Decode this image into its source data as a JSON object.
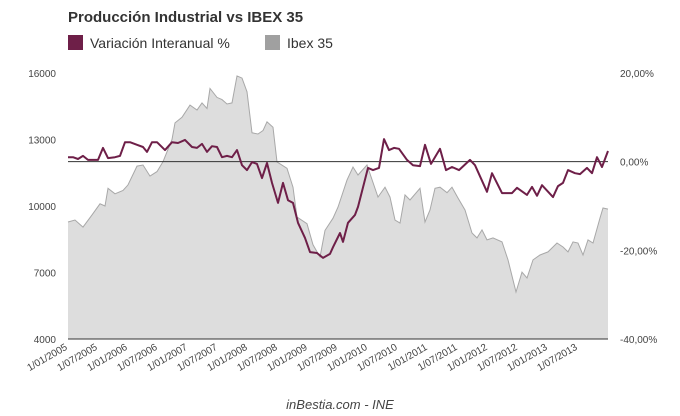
{
  "chart_data": {
    "type": "line",
    "title": "Producción Industrial vs IBEX 35",
    "source": "inBestia.com - INE",
    "x_unit": "months since 1/01/2005",
    "xlim": [
      0,
      108
    ],
    "x_tick_labels": [
      "1/01/2005",
      "1/07/2005",
      "1/01/2006",
      "1/07/2006",
      "1/01/2007",
      "1/07/2007",
      "1/01/2008",
      "1/07/2008",
      "1/01/2009",
      "1/07/2009",
      "1/01/2010",
      "1/07/2010",
      "1/01/2011",
      "1/07/2011",
      "1/01/2012",
      "1/07/2012",
      "1/01/2013",
      "1/07/2013"
    ],
    "y_left": {
      "ylim": [
        4000,
        16000
      ],
      "ticks": [
        "16000",
        "13000",
        "10000",
        "7000",
        "4000"
      ]
    },
    "y_right": {
      "ylim": [
        -40,
        20
      ],
      "ticks": [
        "20,00%",
        "0,00%",
        "-20,00%",
        "-40,00%"
      ],
      "reference_line": 0
    },
    "legend_position": "top-left",
    "colors": {
      "variacion": "#6e1f48",
      "ibex_fill": "#dddddd",
      "ibex_stroke": "#a8a8a8",
      "ibex_swatch": "#a0a0a0"
    },
    "series": [
      {
        "name": "Variación Interanual %",
        "type": "line",
        "axis": "right",
        "points": [
          [
            0,
            1.0
          ],
          [
            1,
            1.0
          ],
          [
            2,
            0.6
          ],
          [
            3,
            1.3
          ],
          [
            4,
            0.4
          ],
          [
            6,
            0.4
          ],
          [
            7,
            3.1
          ],
          [
            8,
            0.8
          ],
          [
            9.4,
            1.0
          ],
          [
            10.4,
            1.3
          ],
          [
            11.4,
            4.4
          ],
          [
            12.4,
            4.4
          ],
          [
            13.8,
            3.8
          ],
          [
            15,
            3.3
          ],
          [
            15.8,
            2.2
          ],
          [
            16.8,
            4.4
          ],
          [
            17.8,
            4.4
          ],
          [
            19.4,
            2.6
          ],
          [
            20.8,
            4.4
          ],
          [
            22,
            4.2
          ],
          [
            23.4,
            4.9
          ],
          [
            24.8,
            3.3
          ],
          [
            25.8,
            3.1
          ],
          [
            26.8,
            4.0
          ],
          [
            27.8,
            2.2
          ],
          [
            28.8,
            3.5
          ],
          [
            29.8,
            3.3
          ],
          [
            30.8,
            1.0
          ],
          [
            31.8,
            1.3
          ],
          [
            32.8,
            1.0
          ],
          [
            33.8,
            2.6
          ],
          [
            34.8,
            -0.8
          ],
          [
            35.8,
            -1.9
          ],
          [
            36.8,
            -0.1
          ],
          [
            37.8,
            -0.5
          ],
          [
            38.8,
            -3.7
          ],
          [
            39.8,
            -0.3
          ],
          [
            40.8,
            -4.8
          ],
          [
            42,
            -9.3
          ],
          [
            43,
            -4.8
          ],
          [
            44,
            -8.7
          ],
          [
            45,
            -9.3
          ],
          [
            46,
            -13.8
          ],
          [
            47.4,
            -17.2
          ],
          [
            48.4,
            -20.4
          ],
          [
            49.8,
            -20.6
          ],
          [
            51,
            -21.7
          ],
          [
            52.4,
            -20.8
          ],
          [
            53,
            -19.3
          ],
          [
            54.4,
            -16.1
          ],
          [
            55,
            -18.1
          ],
          [
            56,
            -13.8
          ],
          [
            57.4,
            -12.0
          ],
          [
            58,
            -10.2
          ],
          [
            60,
            -1.4
          ],
          [
            61,
            -1.9
          ],
          [
            62.2,
            -1.4
          ],
          [
            63.2,
            5.1
          ],
          [
            64.2,
            2.6
          ],
          [
            65.2,
            3.1
          ],
          [
            66.2,
            2.9
          ],
          [
            67.8,
            0.4
          ],
          [
            69,
            -0.8
          ],
          [
            70.4,
            -1.0
          ],
          [
            71.4,
            3.8
          ],
          [
            72.6,
            -0.5
          ],
          [
            74.4,
            2.9
          ],
          [
            75.6,
            -1.9
          ],
          [
            76.8,
            -1.2
          ],
          [
            78.2,
            -1.9
          ],
          [
            80.4,
            0.4
          ],
          [
            81.4,
            -0.8
          ],
          [
            83.8,
            -6.8
          ],
          [
            84.8,
            -2.6
          ],
          [
            86.8,
            -7.1
          ],
          [
            88.8,
            -7.1
          ],
          [
            89.8,
            -5.9
          ],
          [
            91.8,
            -7.5
          ],
          [
            92.8,
            -5.7
          ],
          [
            93.8,
            -7.7
          ],
          [
            94.8,
            -5.3
          ],
          [
            97,
            -8.0
          ],
          [
            98,
            -5.5
          ],
          [
            99,
            -4.8
          ],
          [
            100,
            -1.9
          ],
          [
            101.4,
            -2.6
          ],
          [
            102.4,
            -2.8
          ],
          [
            103.8,
            -1.4
          ],
          [
            104.8,
            -2.6
          ],
          [
            105.8,
            1.0
          ],
          [
            106.8,
            -1.2
          ],
          [
            108,
            2.4
          ]
        ]
      },
      {
        "name": "Ibex 35",
        "type": "area",
        "axis": "left",
        "points": [
          [
            0,
            9280
          ],
          [
            1.4,
            9370
          ],
          [
            3,
            9050
          ],
          [
            4.8,
            9600
          ],
          [
            6.4,
            10100
          ],
          [
            7.4,
            10000
          ],
          [
            8,
            10800
          ],
          [
            9.4,
            10550
          ],
          [
            11,
            10700
          ],
          [
            12,
            10950
          ],
          [
            13.8,
            11800
          ],
          [
            15,
            11850
          ],
          [
            16.4,
            11350
          ],
          [
            17.8,
            11550
          ],
          [
            19,
            12000
          ],
          [
            20.8,
            13000
          ],
          [
            21.4,
            13750
          ],
          [
            22.8,
            14000
          ],
          [
            24.4,
            14550
          ],
          [
            25.8,
            14330
          ],
          [
            26.8,
            14650
          ],
          [
            27.8,
            14400
          ],
          [
            28.4,
            15300
          ],
          [
            29.8,
            14900
          ],
          [
            30.8,
            14800
          ],
          [
            31.8,
            14600
          ],
          [
            32.8,
            14650
          ],
          [
            33.8,
            15870
          ],
          [
            34.8,
            15770
          ],
          [
            35.8,
            15150
          ],
          [
            36.8,
            13300
          ],
          [
            38,
            13250
          ],
          [
            39,
            13400
          ],
          [
            39.8,
            13800
          ],
          [
            41,
            13550
          ],
          [
            41.8,
            11990
          ],
          [
            43.8,
            11700
          ],
          [
            45,
            10850
          ],
          [
            45.8,
            9500
          ],
          [
            47.8,
            9200
          ],
          [
            49,
            8250
          ],
          [
            50.4,
            7700
          ],
          [
            51.4,
            8900
          ],
          [
            53,
            9450
          ],
          [
            54,
            9950
          ],
          [
            55.8,
            11170
          ],
          [
            57,
            11760
          ],
          [
            58,
            11400
          ],
          [
            59.8,
            11850
          ],
          [
            62,
            10400
          ],
          [
            63.4,
            10850
          ],
          [
            64.4,
            10400
          ],
          [
            65.4,
            9370
          ],
          [
            66.4,
            9230
          ],
          [
            67.4,
            10500
          ],
          [
            68.4,
            10270
          ],
          [
            70.4,
            10800
          ],
          [
            71.4,
            9280
          ],
          [
            72.4,
            9820
          ],
          [
            73.4,
            10800
          ],
          [
            74.4,
            10850
          ],
          [
            75.8,
            10600
          ],
          [
            76.8,
            10850
          ],
          [
            78,
            10360
          ],
          [
            79.4,
            9820
          ],
          [
            80.8,
            8780
          ],
          [
            81.8,
            8560
          ],
          [
            82.8,
            8920
          ],
          [
            83.8,
            8470
          ],
          [
            85,
            8560
          ],
          [
            86.8,
            8380
          ],
          [
            88,
            7570
          ],
          [
            89.6,
            6120
          ],
          [
            90.8,
            7020
          ],
          [
            91.8,
            6750
          ],
          [
            93,
            7570
          ],
          [
            94.4,
            7790
          ],
          [
            96,
            7930
          ],
          [
            97.8,
            8330
          ],
          [
            99,
            8150
          ],
          [
            100,
            7930
          ],
          [
            101,
            8380
          ],
          [
            102,
            8330
          ],
          [
            103,
            7790
          ],
          [
            104,
            8470
          ],
          [
            105,
            8330
          ],
          [
            106.4,
            9460
          ],
          [
            107,
            9910
          ],
          [
            108,
            9860
          ]
        ]
      }
    ]
  }
}
